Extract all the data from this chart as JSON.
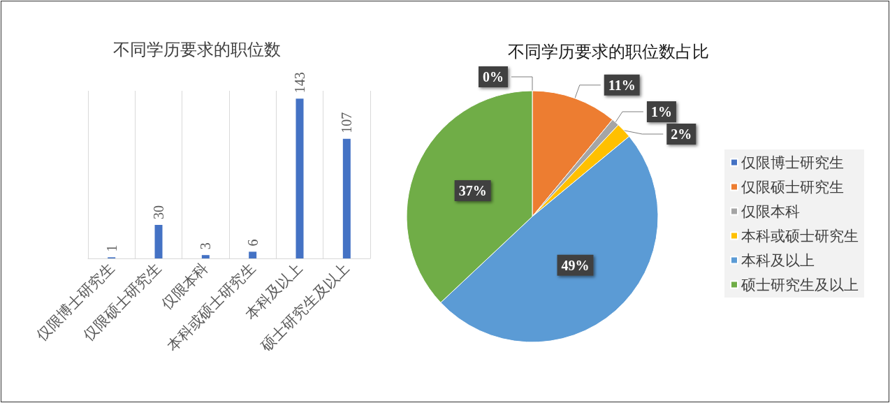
{
  "chart_data": [
    {
      "type": "bar",
      "title": "不同学历要求的职位数",
      "categories": [
        "仅限博士研究生",
        "仅限硕士研究生",
        "仅限本科",
        "本科或硕士研究生",
        "本科及以上",
        "硕士研究生及以上"
      ],
      "values": [
        1,
        30,
        3,
        6,
        143,
        107
      ],
      "color": "#4472c4",
      "data_labels": true,
      "grid": "x"
    },
    {
      "type": "pie",
      "title": "不同学历要求的职位数占比",
      "categories": [
        "仅限博士研究生",
        "仅限硕士研究生",
        "仅限本科",
        "本科或硕士研究生",
        "本科及以上",
        "硕士研究生及以上"
      ],
      "values": [
        0,
        11,
        1,
        2,
        49,
        37
      ],
      "colors": [
        "#4472c4",
        "#ed7d31",
        "#a5a5a5",
        "#ffc000",
        "#5b9bd5",
        "#70ad47"
      ],
      "value_labels": [
        "0%",
        "11%",
        "1%",
        "2%",
        "49%",
        "37%"
      ],
      "legend": "right"
    }
  ]
}
